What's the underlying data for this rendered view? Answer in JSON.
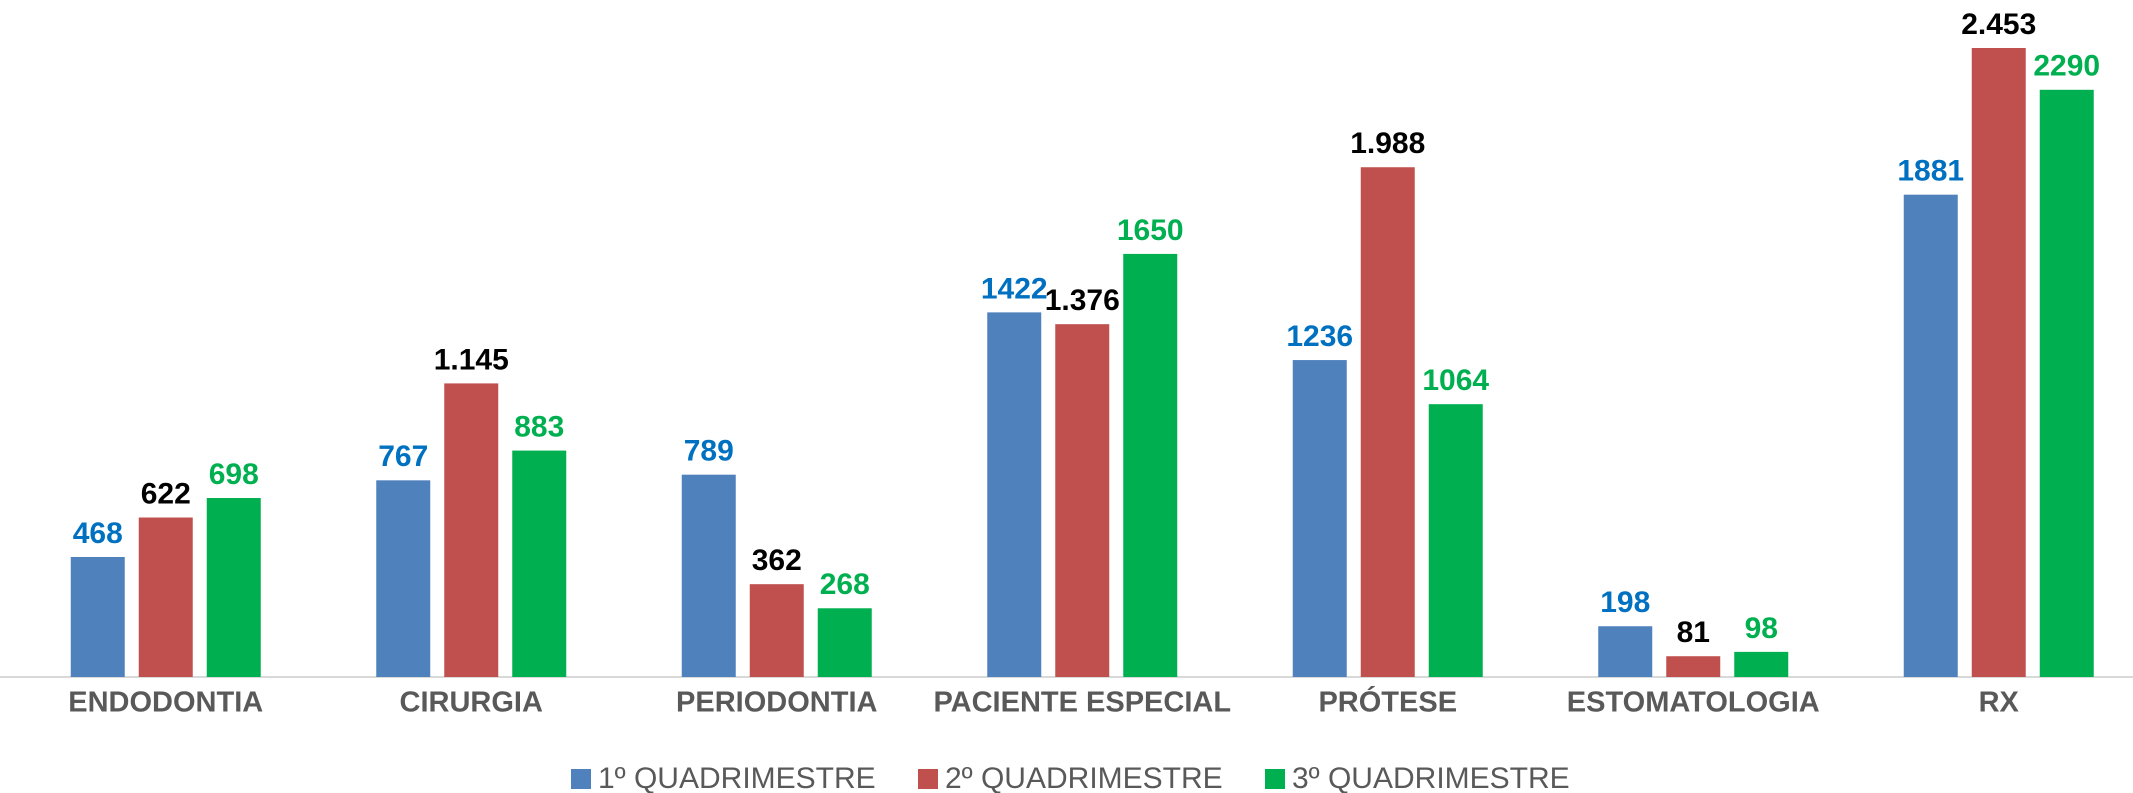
{
  "chart_data": {
    "type": "bar",
    "categories": [
      "ENDODONTIA",
      "CIRURGIA",
      "PERIODONTIA",
      "PACIENTE ESPECIAL",
      "PRÓTESE",
      "ESTOMATOLOGIA",
      "RX"
    ],
    "series": [
      {
        "name": "1º QUADRIMESTRE",
        "color": "#4f81bd",
        "label_color": "#0070c0",
        "values": [
          468,
          767,
          789,
          1422,
          1236,
          198,
          1881
        ]
      },
      {
        "name": "2º QUADRIMESTRE",
        "color": "#c0504d",
        "label_color": "#000000",
        "values": [
          622,
          1145,
          362,
          1376,
          1988,
          81,
          2453
        ],
        "value_labels": [
          "622",
          "1.145",
          "362",
          "1.376",
          "1.988",
          "81",
          "2.453"
        ]
      },
      {
        "name": "3º QUADRIMESTRE",
        "color": "#00b050",
        "label_color": "#00b050",
        "values": [
          698,
          883,
          268,
          1650,
          1064,
          98,
          2290
        ]
      }
    ],
    "legend": "bottom"
  }
}
